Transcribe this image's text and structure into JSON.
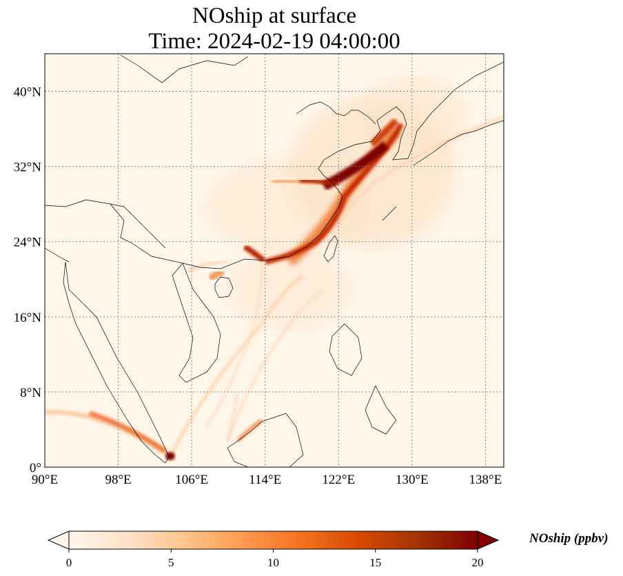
{
  "title": {
    "line1": "NOship at surface",
    "line2": "Time: 2024-02-19 04:00:00"
  },
  "map": {
    "lon_range": [
      90,
      140
    ],
    "lat_range": [
      0,
      44
    ],
    "lon_ticks": [
      {
        "value": 90,
        "label": "90°E"
      },
      {
        "value": 98,
        "label": "98°E"
      },
      {
        "value": 106,
        "label": "106°E"
      },
      {
        "value": 114,
        "label": "114°E"
      },
      {
        "value": 122,
        "label": "122°E"
      },
      {
        "value": 130,
        "label": "130°E"
      },
      {
        "value": 138,
        "label": "138°E"
      }
    ],
    "lat_ticks": [
      {
        "value": 0,
        "label": "0°"
      },
      {
        "value": 8,
        "label": "8°N"
      },
      {
        "value": 16,
        "label": "16°N"
      },
      {
        "value": 24,
        "label": "24°N"
      },
      {
        "value": 32,
        "label": "32°N"
      },
      {
        "value": 40,
        "label": "40°N"
      }
    ],
    "gridlines": true,
    "background_color": "#fff6ea",
    "coast_color": "#000000"
  },
  "colorbar": {
    "label": "NOship (ppbv)",
    "ticks": [
      0,
      5,
      10,
      15,
      20
    ],
    "min": 0,
    "max": 20,
    "colormap": [
      "#fff5eb",
      "#fee3c8",
      "#fdc590",
      "#fd9c51",
      "#f4711f",
      "#d84801",
      "#a33403",
      "#7f0000"
    ],
    "extend": "both"
  }
}
